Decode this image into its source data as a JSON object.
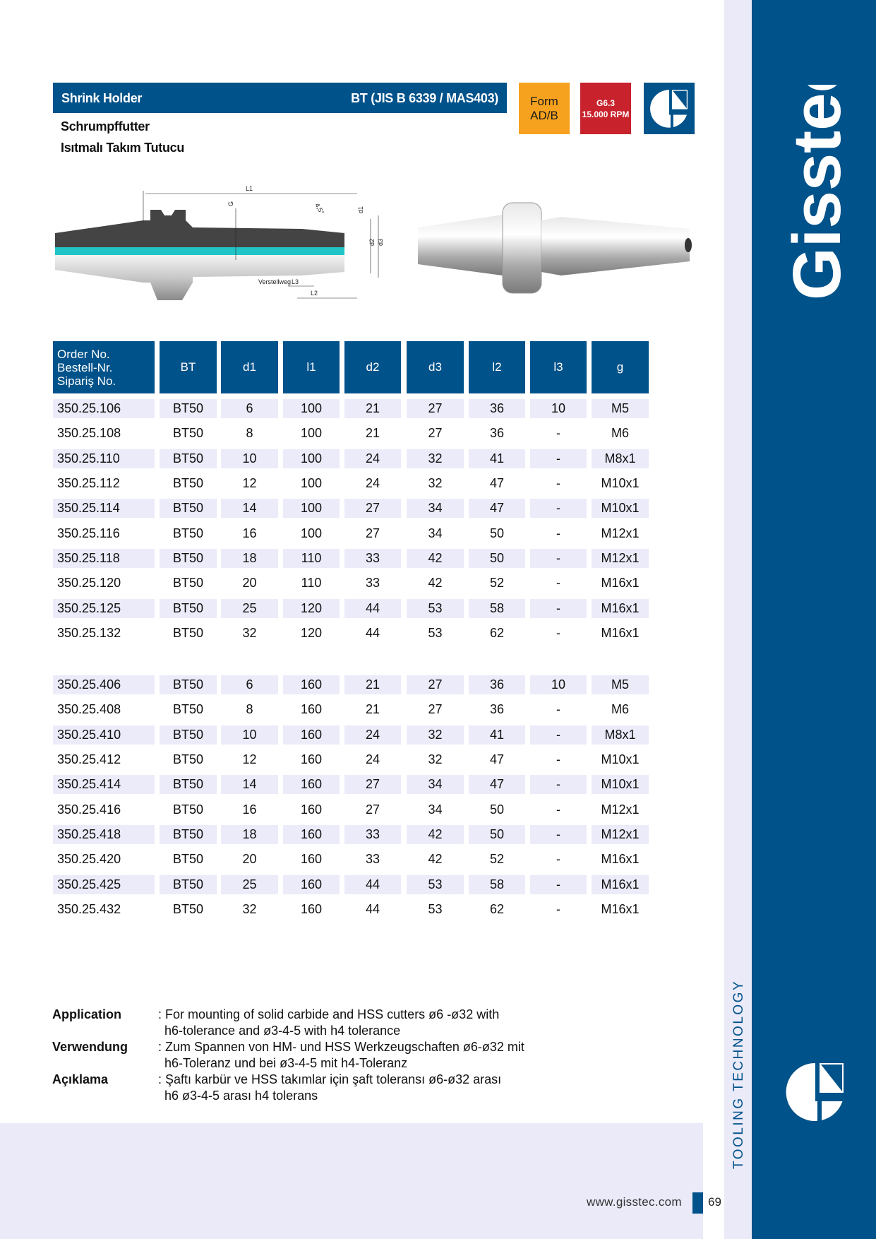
{
  "header": {
    "title": "Shrink Holder",
    "standard": "BT (JIS B 6339 / MAS403)",
    "subtitle_de": "Schrumpffutter",
    "subtitle_tr": "Isıtmalı Takım Tutucu"
  },
  "badges": {
    "form_line1": "Form",
    "form_line2": "AD/B",
    "balance_line1": "G6.3",
    "balance_line2": "15.000 RPM",
    "colors": {
      "form": "#f7a21e",
      "balance": "#c8232c",
      "brand": "#00528a"
    }
  },
  "drawing": {
    "labels": {
      "L1": "L1",
      "L2": "L2",
      "L3": "L3",
      "G": "G",
      "d1": "d1",
      "d2": "d2",
      "d3": "d3",
      "angle": "4,5°",
      "adjust": "Verstellweg"
    }
  },
  "table": {
    "headers": {
      "order_line1": "Order No.",
      "order_line2": "Bestell-Nr.",
      "order_line3": "Sipariş No.",
      "bt": "BT",
      "d1": "d1",
      "l1": "l1",
      "d2": "d2",
      "d3": "d3",
      "l2": "l2",
      "l3": "l3",
      "g": "g"
    },
    "groups": [
      [
        [
          "350.25.106",
          "BT50",
          "6",
          "100",
          "21",
          "27",
          "36",
          "10",
          "M5"
        ],
        [
          "350.25.108",
          "BT50",
          "8",
          "100",
          "21",
          "27",
          "36",
          "-",
          "M6"
        ],
        [
          "350.25.110",
          "BT50",
          "10",
          "100",
          "24",
          "32",
          "41",
          "-",
          "M8x1"
        ],
        [
          "350.25.112",
          "BT50",
          "12",
          "100",
          "24",
          "32",
          "47",
          "-",
          "M10x1"
        ],
        [
          "350.25.114",
          "BT50",
          "14",
          "100",
          "27",
          "34",
          "47",
          "-",
          "M10x1"
        ],
        [
          "350.25.116",
          "BT50",
          "16",
          "100",
          "27",
          "34",
          "50",
          "-",
          "M12x1"
        ],
        [
          "350.25.118",
          "BT50",
          "18",
          "110",
          "33",
          "42",
          "50",
          "-",
          "M12x1"
        ],
        [
          "350.25.120",
          "BT50",
          "20",
          "110",
          "33",
          "42",
          "52",
          "-",
          "M16x1"
        ],
        [
          "350.25.125",
          "BT50",
          "25",
          "120",
          "44",
          "53",
          "58",
          "-",
          "M16x1"
        ],
        [
          "350.25.132",
          "BT50",
          "32",
          "120",
          "44",
          "53",
          "62",
          "-",
          "M16x1"
        ]
      ],
      [
        [
          "350.25.406",
          "BT50",
          "6",
          "160",
          "21",
          "27",
          "36",
          "10",
          "M5"
        ],
        [
          "350.25.408",
          "BT50",
          "8",
          "160",
          "21",
          "27",
          "36",
          "-",
          "M6"
        ],
        [
          "350.25.410",
          "BT50",
          "10",
          "160",
          "24",
          "32",
          "41",
          "-",
          "M8x1"
        ],
        [
          "350.25.412",
          "BT50",
          "12",
          "160",
          "24",
          "32",
          "47",
          "-",
          "M10x1"
        ],
        [
          "350.25.414",
          "BT50",
          "14",
          "160",
          "27",
          "34",
          "47",
          "-",
          "M10x1"
        ],
        [
          "350.25.416",
          "BT50",
          "16",
          "160",
          "27",
          "34",
          "50",
          "-",
          "M12x1"
        ],
        [
          "350.25.418",
          "BT50",
          "18",
          "160",
          "33",
          "42",
          "50",
          "-",
          "M12x1"
        ],
        [
          "350.25.420",
          "BT50",
          "20",
          "160",
          "33",
          "42",
          "52",
          "-",
          "M16x1"
        ],
        [
          "350.25.425",
          "BT50",
          "25",
          "160",
          "44",
          "53",
          "58",
          "-",
          "M16x1"
        ],
        [
          "350.25.432",
          "BT50",
          "32",
          "160",
          "44",
          "53",
          "62",
          "-",
          "M16x1"
        ]
      ]
    ]
  },
  "application": {
    "en_label": "Application",
    "en_line1": ": For mounting of solid carbide and HSS cutters ø6 -ø32 with",
    "en_line2": "h6-tolerance and ø3-4-5 with h4 tolerance",
    "de_label": "Verwendung",
    "de_line1": ": Zum Spannen von HM- und HSS Werkzeugschaften ø6-ø32 mit",
    "de_line2": "h6-Toleranz und bei ø3-4-5 mit h4-Toleranz",
    "tr_label": "Açıklama",
    "tr_line1": ": Şaftı karbür ve HSS takımlar için şaft toleransı ø6-ø32 arası",
    "tr_line2": "h6 ø3-4-5 arası h4 tolerans"
  },
  "sidebar": {
    "brand": "Gisstec",
    "registered": "®",
    "tagline": "TOOLING TECHNOLOGY"
  },
  "footer": {
    "url": "www.gisstec.com",
    "page": "69"
  }
}
